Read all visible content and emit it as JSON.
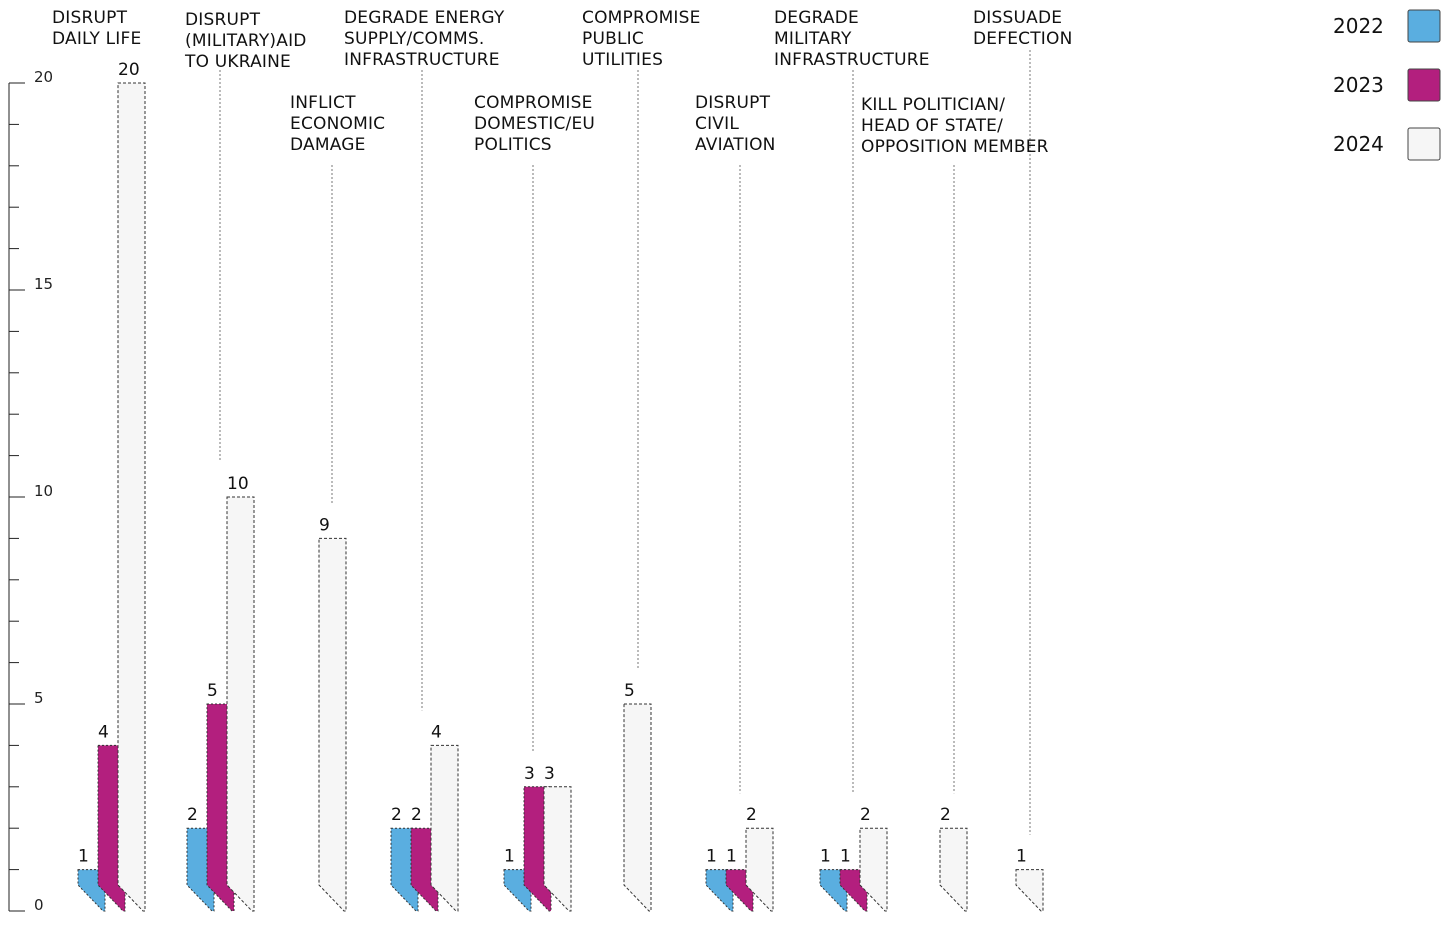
{
  "chart_data": {
    "type": "bar",
    "categories": [
      "DISRUPT\nDAILY LIFE",
      "DISRUPT\n(MILITARY)AID\nTO UKRAINE",
      "INFLICT\nECONOMIC\nDAMAGE",
      "DEGRADE ENERGY\nSUPPLY/COMMS.\nINFRASTRUCTURE",
      "COMPROMISE\nDOMESTIC/EU\nPOLITICS",
      "COMPROMISE\nPUBLIC\nUTILITIES",
      "DISRUPT\nCIVIL\nAVIATION",
      "DEGRADE\nMILITARY\nINFRASTRUCTURE",
      "KILL POLITICIAN/\nHEAD OF STATE/\nOPPOSITION MEMBER",
      "DISSUADE\nDEFECTION"
    ],
    "series": [
      {
        "name": "2022",
        "color": "#5aaee0",
        "values": [
          1,
          2,
          null,
          2,
          1,
          null,
          1,
          1,
          null,
          null
        ]
      },
      {
        "name": "2023",
        "color": "#b31f7e",
        "values": [
          4,
          5,
          null,
          2,
          3,
          null,
          1,
          1,
          null,
          null
        ]
      },
      {
        "name": "2024",
        "color": "#f6f6f6",
        "values": [
          20,
          10,
          9,
          4,
          3,
          5,
          2,
          2,
          2,
          1
        ]
      }
    ],
    "ylim": [
      0,
      20
    ],
    "y_ticks": [
      0,
      5,
      10,
      15,
      20
    ],
    "y_minor_step": 1,
    "legend_position": "top-right",
    "grid": false
  }
}
